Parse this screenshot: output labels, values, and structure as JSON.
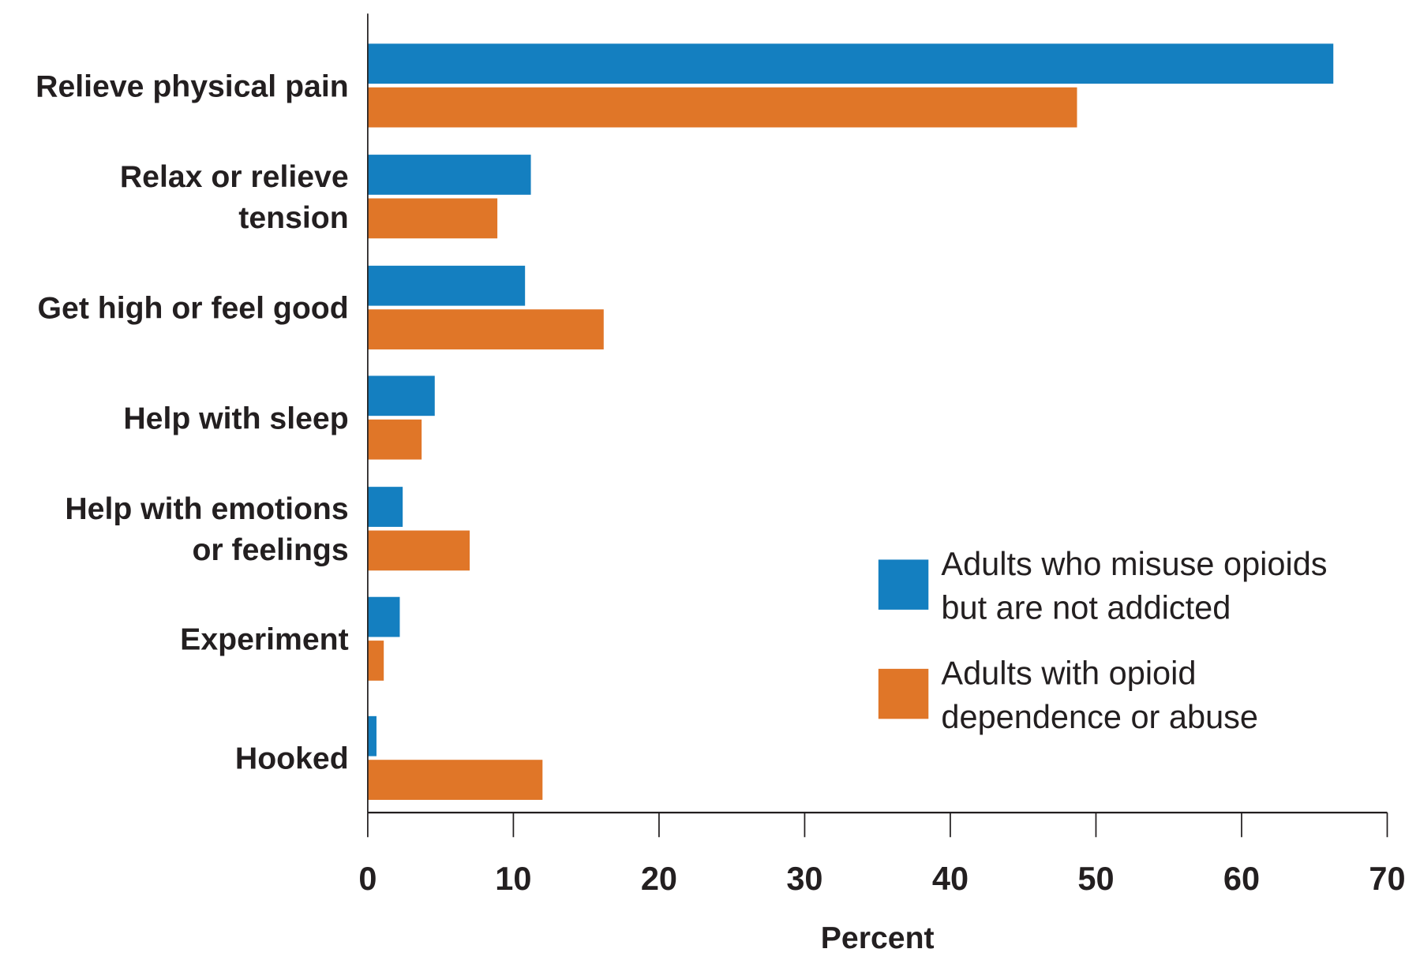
{
  "chart_data": {
    "type": "bar",
    "orientation": "horizontal",
    "title": "",
    "xlabel": "Percent",
    "ylabel": "",
    "xlim": [
      0,
      70
    ],
    "xticks": [
      0,
      10,
      20,
      30,
      40,
      50,
      60,
      70
    ],
    "grid": false,
    "legend_position": "bottom-right",
    "categories": [
      [
        "Relieve physical pain"
      ],
      [
        "Relax or relieve",
        "tension"
      ],
      [
        "Get high or feel good"
      ],
      [
        "Help with sleep"
      ],
      [
        "Help with emotions",
        "or feelings"
      ],
      [
        "Experiment"
      ],
      [
        "Hooked"
      ]
    ],
    "series": [
      {
        "name": [
          "Adults who misuse opioids",
          "but are not addicted"
        ],
        "color": "#147fc0",
        "values": [
          66.3,
          11.2,
          10.8,
          4.6,
          2.4,
          2.2,
          0.6
        ]
      },
      {
        "name": [
          "Adults with opioid",
          "dependence or abuse"
        ],
        "color": "#e07628",
        "values": [
          48.7,
          8.9,
          16.2,
          3.7,
          7.0,
          1.1,
          12.0
        ]
      }
    ]
  }
}
